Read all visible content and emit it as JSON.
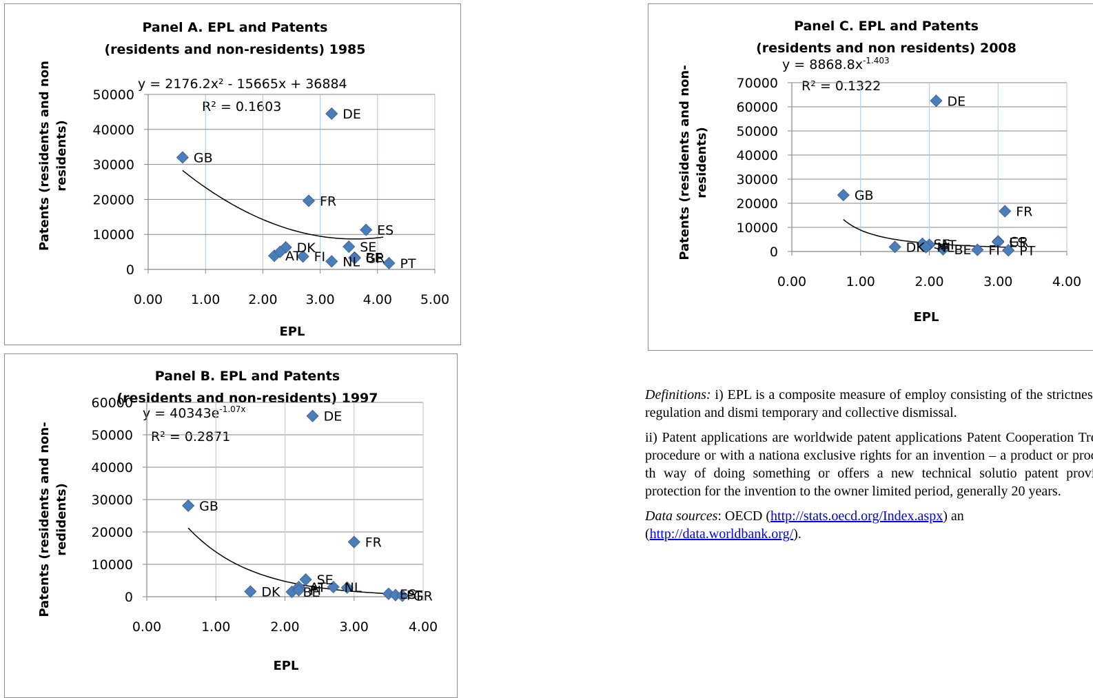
{
  "notes": {
    "def_label": "Definitions:",
    "def_text": " i) EPL is a composite measure of employ consisting of the strictness of regulation and dismi temporary and collective dismissal.",
    "patent_text": "ii) Patent applications are worldwide patent applications Patent Cooperation Treaty procedure or with a nationa exclusive rights for an invention – a product or process th way of doing something or offers a new technical solutio patent provides protection for the invention to the owner limited period, generally 20 years.",
    "src_label": "Data sources",
    "src_text": ": OECD (",
    "link1": "http://stats.oecd.org/Index.aspx",
    "mid_text": ") an",
    "link2": "http://data.worldbank.org/",
    "end_text": ")."
  },
  "chart_data": [
    {
      "id": "A",
      "type": "scatter",
      "title_lines": [
        "Panel A. EPL and Patents",
        "(residents and non-residents) 1985"
      ],
      "ylabel_lines": [
        "Patents (residents and non",
        "residents)"
      ],
      "xlabel": "EPL",
      "xlim": [
        0,
        5
      ],
      "ylim": [
        0,
        50000
      ],
      "xticks": [
        0,
        1,
        2,
        3,
        4,
        5
      ],
      "yticks": [
        0,
        10000,
        20000,
        30000,
        40000,
        50000
      ],
      "grid": "vertical",
      "marker_color": "#4a7ebb",
      "trendline": {
        "type": "polynomial",
        "x_range": [
          0.6,
          4.1
        ]
      },
      "equation_lines": [
        "y = 2176.2x² - 15665x + 36884",
        "R² = 0.1603"
      ],
      "points": [
        {
          "label": "GB",
          "x": 0.6,
          "y": 32000
        },
        {
          "label": "DE",
          "x": 3.2,
          "y": 44500
        },
        {
          "label": "FR",
          "x": 2.8,
          "y": 19600
        },
        {
          "label": "ES",
          "x": 3.8,
          "y": 11300
        },
        {
          "label": "DK",
          "x": 2.4,
          "y": 6300
        },
        {
          "label": "SE",
          "x": 3.5,
          "y": 6500
        },
        {
          "label": "AT",
          "x": 2.2,
          "y": 3900
        },
        {
          "label": "",
          "x": 2.3,
          "y": 5000
        },
        {
          "label": "FI",
          "x": 2.7,
          "y": 3700
        },
        {
          "label": "NL",
          "x": 3.2,
          "y": 2300
        },
        {
          "label": "BE",
          "x": 3.6,
          "y": 3400
        },
        {
          "label": "GR",
          "x": 3.6,
          "y": 3200
        },
        {
          "label": "PT",
          "x": 4.2,
          "y": 1800
        }
      ]
    },
    {
      "id": "B",
      "type": "scatter",
      "title_lines": [
        "Panel B. EPL and Patents",
        "(residents and non-residents) 1997"
      ],
      "ylabel_lines": [
        "Patents (residents and non-",
        "redidents)"
      ],
      "xlabel": "EPL",
      "xlim": [
        0,
        4
      ],
      "ylim": [
        0,
        60000
      ],
      "xticks": [
        0,
        1,
        2,
        3,
        4
      ],
      "yticks": [
        0,
        10000,
        20000,
        30000,
        40000,
        50000,
        60000
      ],
      "grid": "both",
      "marker_color": "#4a7ebb",
      "trendline": {
        "type": "exponential",
        "x_range": [
          0.6,
          3.7
        ]
      },
      "equation_lines": [
        "y = 40343e-1.07x",
        "R² = 0.2871"
      ],
      "points": [
        {
          "label": "DE",
          "x": 2.4,
          "y": 55800
        },
        {
          "label": "GB",
          "x": 0.6,
          "y": 28100
        },
        {
          "label": "FR",
          "x": 3.0,
          "y": 16900
        },
        {
          "label": "SE",
          "x": 2.3,
          "y": 5300
        },
        {
          "label": "AT",
          "x": 2.2,
          "y": 3000
        },
        {
          "label": "DK",
          "x": 1.5,
          "y": 1600
        },
        {
          "label": "BE",
          "x": 2.1,
          "y": 1500
        },
        {
          "label": "FI",
          "x": 2.2,
          "y": 2000
        },
        {
          "label": "NL",
          "x": 2.7,
          "y": 3000
        },
        {
          "label": "",
          "x": 2.9,
          "y": 2800
        },
        {
          "label": "ES",
          "x": 3.5,
          "y": 900
        },
        {
          "label": "PT",
          "x": 3.6,
          "y": 500
        },
        {
          "label": "GR",
          "x": 3.7,
          "y": 300
        }
      ]
    },
    {
      "id": "C",
      "type": "scatter",
      "title_lines": [
        "Panel C. EPL and Patents",
        "(residents and non residents) 2008"
      ],
      "ylabel_lines": [
        "Patents (residents and non-",
        "residents)"
      ],
      "xlabel": "EPL",
      "xlim": [
        0,
        4
      ],
      "ylim": [
        0,
        70000
      ],
      "xticks": [
        0,
        1,
        2,
        3,
        4
      ],
      "yticks": [
        0,
        10000,
        20000,
        30000,
        40000,
        50000,
        60000,
        70000
      ],
      "grid": "both",
      "marker_color": "#4a7ebb",
      "trendline": {
        "type": "power",
        "x_range": [
          0.75,
          3.2
        ]
      },
      "equation_lines": [
        "y = 8868.8x-1.403",
        "R² = 0.1322"
      ],
      "points": [
        {
          "label": "DE",
          "x": 2.1,
          "y": 62500
        },
        {
          "label": "GB",
          "x": 0.75,
          "y": 23400
        },
        {
          "label": "FR",
          "x": 3.1,
          "y": 16700
        },
        {
          "label": "SE",
          "x": 1.9,
          "y": 3200
        },
        {
          "label": "AT",
          "x": 2.0,
          "y": 2800
        },
        {
          "label": "DK",
          "x": 1.5,
          "y": 1900
        },
        {
          "label": "NL",
          "x": 1.95,
          "y": 1800
        },
        {
          "label": "BE",
          "x": 2.2,
          "y": 900
        },
        {
          "label": "FI",
          "x": 2.7,
          "y": 700
        },
        {
          "label": "GR",
          "x": 3.0,
          "y": 4200
        },
        {
          "label": "PT",
          "x": 3.15,
          "y": 500
        },
        {
          "label": "ES",
          "x": 3.0,
          "y": 3900
        }
      ]
    }
  ]
}
